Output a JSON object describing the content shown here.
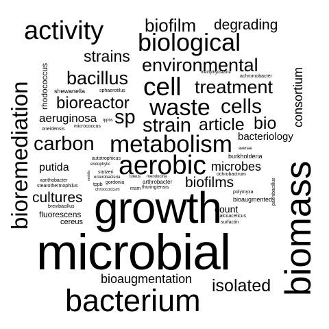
{
  "words": [
    {
      "text": "microbial",
      "color": "#000000",
      "vertical": false
    },
    {
      "text": "growth",
      "color": "#000000",
      "vertical": false
    },
    {
      "text": "biomass",
      "color": "#000000",
      "vertical": true
    },
    {
      "text": "bacterium",
      "color": "#000000",
      "vertical": false
    },
    {
      "text": "bioremediation",
      "color": "#000000",
      "vertical": true
    },
    {
      "text": "activity",
      "color": "#000000",
      "vertical": false
    },
    {
      "text": "aerobic",
      "color": "#000000",
      "vertical": false
    },
    {
      "text": "metabolism",
      "color": "#000000",
      "vertical": false
    },
    {
      "text": "biological",
      "color": "#000000",
      "vertical": false
    },
    {
      "text": "cell",
      "color": "#000000",
      "vertical": false
    },
    {
      "text": "waste",
      "color": "#000000",
      "vertical": false
    },
    {
      "text": "carbon",
      "color": "#000000",
      "vertical": false
    },
    {
      "text": "cells",
      "color": "#000000",
      "vertical": false
    },
    {
      "text": "treatment",
      "color": "#000000",
      "vertical": false
    },
    {
      "text": "environmental",
      "color": "#000000",
      "vertical": false
    },
    {
      "text": "biofilm",
      "color": "#000000",
      "vertical": false
    },
    {
      "text": "strain",
      "color": "#000000",
      "vertical": false
    },
    {
      "text": "bacillus",
      "color": "#000000",
      "vertical": false
    },
    {
      "text": "sp",
      "color": "#000000",
      "vertical": false
    },
    {
      "text": "article",
      "color": "#000000",
      "vertical": false
    },
    {
      "text": "bio",
      "color": "#000000",
      "vertical": false
    },
    {
      "text": "bioreactor",
      "color": "#000000",
      "vertical": false
    },
    {
      "text": "isolated",
      "color": "#000000",
      "vertical": false
    },
    {
      "text": "cultures",
      "color": "#000000",
      "vertical": false
    },
    {
      "text": "biofilms",
      "color": "#000000",
      "vertical": false
    },
    {
      "text": "strains",
      "color": "#000000",
      "vertical": false
    },
    {
      "text": "degrading",
      "color": "#000000",
      "vertical": false
    },
    {
      "text": "microbes",
      "color": "#000000",
      "vertical": false
    },
    {
      "text": "bioaugmentation",
      "color": "#000000",
      "vertical": false
    },
    {
      "text": "consortium",
      "color": "#000000",
      "vertical": true
    },
    {
      "text": "aeruginosa",
      "color": "#000000",
      "vertical": false
    },
    {
      "text": "putida",
      "color": "#000000",
      "vertical": false
    },
    {
      "text": "bacteriology",
      "color": "#000000",
      "vertical": false
    },
    {
      "text": "count",
      "color": "#000000",
      "vertical": false
    },
    {
      "text": "rhodococcus",
      "color": "#000000",
      "vertical": true
    },
    {
      "text": "fluorescens",
      "color": "#000000",
      "vertical": false
    },
    {
      "text": "cereus",
      "color": "#000000",
      "vertical": false
    },
    {
      "text": "biomass",
      "color": "#000000",
      "vertical": false
    },
    {
      "text": "burkholderia",
      "color": "#000000",
      "vertical": false
    },
    {
      "text": "bioaugmented",
      "color": "#000000",
      "vertical": false
    },
    {
      "text": "shewanella",
      "color": "#000000",
      "vertical": false
    },
    {
      "text": "oneidensis",
      "color": "#000000",
      "vertical": false
    },
    {
      "text": "micrococcus",
      "color": "#000000",
      "vertical": false
    },
    {
      "text": "sphaerotilus",
      "color": "#000000",
      "vertical": false
    },
    {
      "text": "tppbs",
      "color": "#000000",
      "vertical": false
    },
    {
      "text": "achromobacter",
      "color": "#000000",
      "vertical": false
    },
    {
      "text": "methylhydrazine",
      "color": "#000000",
      "vertical": false
    },
    {
      "text": "avenae",
      "color": "#000000",
      "vertical": false
    },
    {
      "text": "autotrophicus",
      "color": "#000000",
      "vertical": false
    },
    {
      "text": "endophytic",
      "color": "#000000",
      "vertical": false
    },
    {
      "text": "stutzeri",
      "color": "#000000",
      "vertical": false
    },
    {
      "text": "enterobacteria",
      "color": "#000000",
      "vertical": false
    },
    {
      "text": "luteus",
      "color": "#000000",
      "vertical": false
    },
    {
      "text": "mendocina",
      "color": "#000000",
      "vertical": false
    },
    {
      "text": "ochrobactrum",
      "color": "#000000",
      "vertical": false
    },
    {
      "text": "xanthobacter",
      "color": "#000000",
      "vertical": false
    },
    {
      "text": "gordonia",
      "color": "#000000",
      "vertical": false
    },
    {
      "text": "arthrobacter",
      "color": "#000000",
      "vertical": false
    },
    {
      "text": "stearothermophilus",
      "color": "#000000",
      "vertical": false
    },
    {
      "text": "tppb",
      "color": "#000000",
      "vertical": false
    },
    {
      "text": "chroococcum",
      "color": "#000000",
      "vertical": false
    },
    {
      "text": "msm",
      "color": "#000000",
      "vertical": false
    },
    {
      "text": "thuringiensis",
      "color": "#000000",
      "vertical": false
    },
    {
      "text": "polymyxa",
      "color": "#000000",
      "vertical": false
    },
    {
      "text": "paenibacillus",
      "color": "#000000",
      "vertical": true
    },
    {
      "text": "brevibacillus",
      "color": "#000000",
      "vertical": false
    },
    {
      "text": "calcoaceticus",
      "color": "#000000",
      "vertical": false
    },
    {
      "text": "surfactin",
      "color": "#000000",
      "vertical": false
    },
    {
      "text": "mobilis",
      "color": "#000000",
      "vertical": true
    }
  ]
}
